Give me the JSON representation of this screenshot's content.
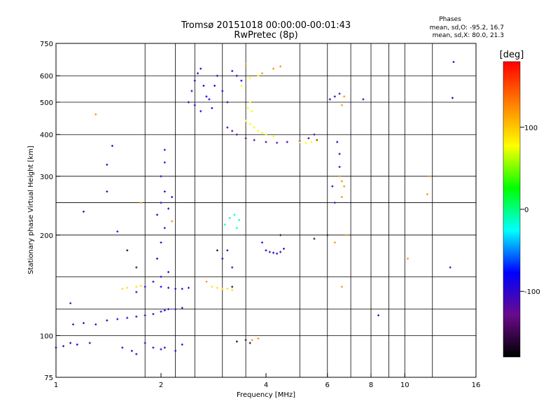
{
  "chart_data": {
    "type": "scatter",
    "title": "Tromsø 20151018 00:00:00-00:01:43",
    "subtitle": "RwPretec (8p)",
    "xlabel": "Frequency [MHz]",
    "ylabel": "Stationary phase Virtual Height [km]",
    "xscale": "log",
    "yscale": "log",
    "xlim": [
      1,
      16
    ],
    "ylim": [
      75,
      750
    ],
    "xticks": [
      1,
      2,
      4,
      6,
      8,
      10,
      16
    ],
    "xtick_labels": [
      "1",
      "2",
      "4",
      "6",
      "8",
      "10",
      "16"
    ],
    "yticks": [
      75,
      100,
      200,
      300,
      400,
      500,
      600,
      750
    ],
    "ytick_labels": [
      "75",
      "100",
      "200",
      "300",
      "400",
      "500",
      "600",
      "750"
    ],
    "x_minor_gridlines": [
      1.8,
      2.2,
      2.5,
      3,
      3.5,
      5,
      6,
      7,
      8,
      9,
      10,
      12
    ],
    "y_gridlines": [
      100,
      120,
      150,
      200,
      250,
      300,
      400,
      500,
      600
    ],
    "grid": true,
    "legend": {
      "title": "Phases",
      "entries": [
        "mean, sd,O: -95.2, 16.7",
        "mean, sd,X:  80.0, 21.3"
      ],
      "position": "top-right"
    },
    "colorbar": {
      "label": "[deg]",
      "range": [
        -180,
        180
      ],
      "ticks": [
        100,
        0,
        -100
      ],
      "tick_labels": [
        "100",
        "0",
        "-100"
      ],
      "colormap": [
        "#000000",
        "#6a0a8c",
        "#0000ff",
        "#00ffff",
        "#00ff00",
        "#ffff00",
        "#ff8000",
        "#ff0000"
      ]
    },
    "series": [
      {
        "phase": -95,
        "points": [
          [
            1.0,
            92
          ],
          [
            1.05,
            93
          ],
          [
            1.1,
            95
          ],
          [
            1.15,
            94
          ],
          [
            1.55,
            92
          ],
          [
            1.65,
            90
          ],
          [
            1.9,
            92
          ],
          [
            2.0,
            91
          ],
          [
            2.05,
            92
          ]
        ]
      },
      {
        "phase": -100,
        "points": [
          [
            1.12,
            108
          ],
          [
            1.2,
            109
          ],
          [
            1.3,
            108
          ],
          [
            1.4,
            111
          ],
          [
            1.5,
            112
          ],
          [
            1.6,
            113
          ],
          [
            1.7,
            114
          ],
          [
            1.8,
            115
          ],
          [
            1.9,
            116
          ],
          [
            2.0,
            118
          ],
          [
            2.05,
            119
          ],
          [
            2.1,
            120
          ],
          [
            2.2,
            120
          ],
          [
            2.3,
            121
          ]
        ]
      },
      {
        "phase": -98,
        "points": [
          [
            1.7,
            135
          ],
          [
            1.8,
            140
          ],
          [
            1.9,
            145
          ],
          [
            2.0,
            150
          ],
          [
            2.1,
            155
          ],
          [
            1.95,
            170
          ],
          [
            2.0,
            190
          ],
          [
            2.05,
            210
          ],
          [
            1.95,
            230
          ],
          [
            2.0,
            250
          ],
          [
            2.05,
            270
          ],
          [
            2.0,
            300
          ],
          [
            2.05,
            330
          ],
          [
            2.05,
            360
          ],
          [
            2.1,
            240
          ],
          [
            2.15,
            260
          ]
        ]
      },
      {
        "phase": -90,
        "points": [
          [
            2.0,
            140
          ],
          [
            2.1,
            139
          ],
          [
            2.2,
            138
          ],
          [
            2.3,
            138
          ],
          [
            2.4,
            139
          ]
        ]
      },
      {
        "phase": 90,
        "points": [
          [
            1.55,
            138
          ],
          [
            1.6,
            139
          ],
          [
            1.7,
            140
          ],
          [
            1.75,
            141
          ],
          [
            2.8,
            140
          ],
          [
            2.9,
            139
          ],
          [
            3.0,
            138
          ],
          [
            3.1,
            138
          ],
          [
            3.2,
            137
          ]
        ]
      },
      {
        "phase": -15,
        "points": [
          [
            3.05,
            215
          ],
          [
            3.15,
            225
          ],
          [
            3.25,
            230
          ],
          [
            3.35,
            222
          ],
          [
            3.3,
            210
          ]
        ]
      },
      {
        "phase": -100,
        "points": [
          [
            3.9,
            190
          ],
          [
            4.0,
            180
          ],
          [
            4.1,
            178
          ],
          [
            4.2,
            177
          ],
          [
            4.3,
            176
          ],
          [
            4.4,
            178
          ],
          [
            4.5,
            182
          ]
        ]
      },
      {
        "phase": -90,
        "points": [
          [
            2.4,
            500
          ],
          [
            2.45,
            540
          ],
          [
            2.5,
            580
          ],
          [
            2.55,
            610
          ],
          [
            2.6,
            630
          ],
          [
            2.65,
            560
          ],
          [
            2.7,
            520
          ],
          [
            2.8,
            480
          ],
          [
            2.9,
            600
          ],
          [
            3.0,
            540
          ],
          [
            3.1,
            500
          ],
          [
            3.2,
            620
          ],
          [
            3.3,
            600
          ],
          [
            3.4,
            580
          ],
          [
            2.5,
            490
          ],
          [
            2.6,
            470
          ],
          [
            2.75,
            510
          ],
          [
            2.85,
            560
          ]
        ]
      },
      {
        "phase": -120,
        "points": [
          [
            3.1,
            420
          ],
          [
            3.2,
            410
          ],
          [
            3.3,
            400
          ],
          [
            3.5,
            390
          ],
          [
            3.7,
            385
          ],
          [
            4.0,
            380
          ],
          [
            4.3,
            378
          ],
          [
            4.6,
            380
          ],
          [
            5.0,
            382
          ],
          [
            5.3,
            390
          ],
          [
            5.5,
            400
          ],
          [
            5.6,
            385
          ]
        ]
      },
      {
        "phase": 80,
        "points": [
          [
            3.5,
            440
          ],
          [
            3.6,
            430
          ],
          [
            3.7,
            420
          ],
          [
            3.8,
            410
          ],
          [
            3.9,
            405
          ],
          [
            4.0,
            400
          ],
          [
            4.2,
            395
          ],
          [
            3.55,
            480
          ],
          [
            3.6,
            500
          ],
          [
            3.65,
            470
          ],
          [
            5.0,
            380
          ],
          [
            5.2,
            378
          ],
          [
            5.4,
            380
          ],
          [
            5.6,
            382
          ],
          [
            3.4,
            560
          ],
          [
            3.6,
            590
          ],
          [
            3.8,
            600
          ]
        ]
      },
      {
        "phase": 120,
        "points": [
          [
            4.2,
            630
          ],
          [
            4.4,
            640
          ],
          [
            3.5,
            650
          ],
          [
            3.9,
            610
          ],
          [
            6.6,
            490
          ],
          [
            6.7,
            520
          ],
          [
            6.5,
            300
          ],
          [
            6.6,
            290
          ],
          [
            6.7,
            280
          ],
          [
            6.6,
            260
          ],
          [
            11.8,
            300
          ],
          [
            11.6,
            265
          ],
          [
            10.2,
            170
          ],
          [
            1.3,
            460
          ],
          [
            1.75,
            250
          ],
          [
            2.15,
            220
          ],
          [
            2.7,
            145
          ],
          [
            3.65,
            97
          ],
          [
            3.8,
            98
          ],
          [
            6.3,
            190
          ],
          [
            6.6,
            140
          ],
          [
            6.8,
            200
          ]
        ]
      },
      {
        "phase": -105,
        "points": [
          [
            6.1,
            510
          ],
          [
            6.3,
            520
          ],
          [
            6.5,
            530
          ],
          [
            7.6,
            510
          ],
          [
            6.4,
            380
          ],
          [
            6.5,
            350
          ],
          [
            6.5,
            320
          ],
          [
            6.2,
            280
          ],
          [
            6.3,
            250
          ],
          [
            8.4,
            115
          ],
          [
            13.8,
            660
          ],
          [
            13.7,
            515
          ],
          [
            13.5,
            160
          ],
          [
            1.45,
            370
          ],
          [
            1.4,
            325
          ],
          [
            1.4,
            270
          ],
          [
            1.5,
            205
          ],
          [
            1.2,
            235
          ],
          [
            1.1,
            125
          ],
          [
            1.25,
            95
          ],
          [
            1.7,
            88
          ],
          [
            1.8,
            95
          ],
          [
            2.2,
            90
          ],
          [
            2.3,
            94
          ],
          [
            3.1,
            180
          ],
          [
            3.2,
            160
          ],
          [
            3.0,
            170
          ]
        ]
      },
      {
        "phase": -150,
        "points": [
          [
            1.6,
            180
          ],
          [
            1.7,
            160
          ],
          [
            2.9,
            180
          ],
          [
            3.2,
            140
          ],
          [
            4.4,
            200
          ],
          [
            5.5,
            195
          ],
          [
            6.0,
            200
          ],
          [
            3.3,
            96
          ],
          [
            3.5,
            97
          ],
          [
            3.6,
            95
          ]
        ]
      }
    ]
  }
}
